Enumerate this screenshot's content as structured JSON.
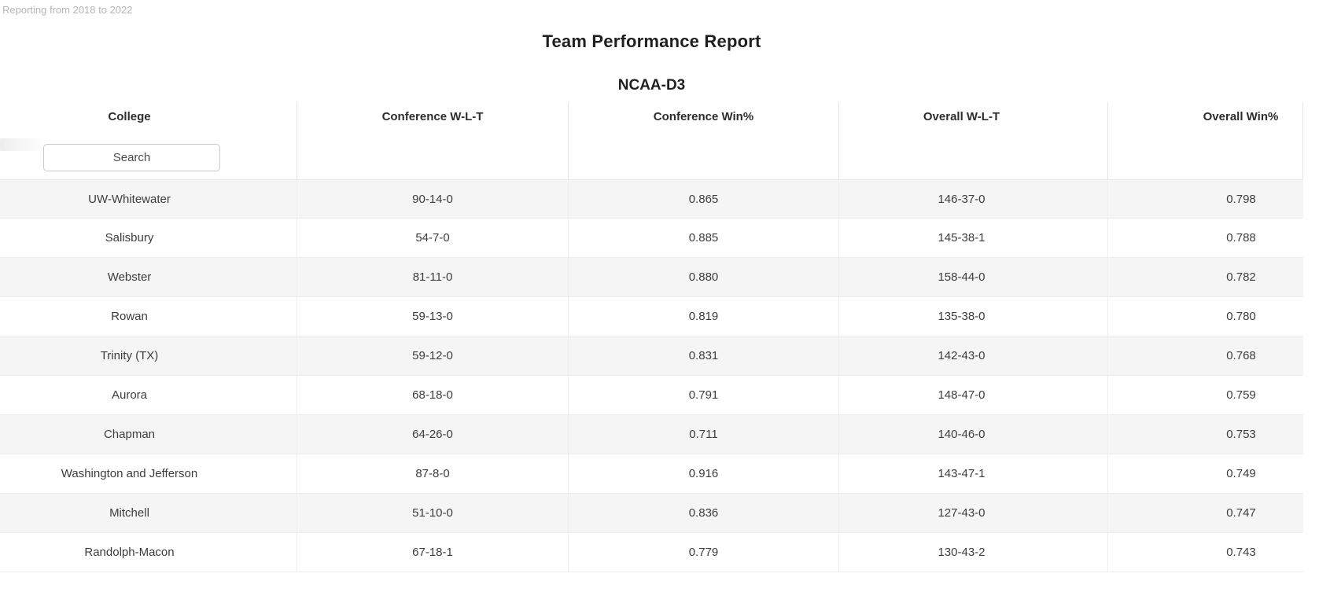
{
  "note": "Reporting from 2018 to 2022",
  "report": {
    "title": "Team Performance Report",
    "subtitle": "NCAA-D3"
  },
  "table": {
    "columns": [
      "College",
      "Conference W-L-T",
      "Conference Win%",
      "Overall W-L-T",
      "Overall Win%"
    ],
    "search_placeholder": "Search",
    "rows": [
      [
        "UW-Whitewater",
        "90-14-0",
        "0.865",
        "146-37-0",
        "0.798"
      ],
      [
        "Salisbury",
        "54-7-0",
        "0.885",
        "145-38-1",
        "0.788"
      ],
      [
        "Webster",
        "81-11-0",
        "0.880",
        "158-44-0",
        "0.782"
      ],
      [
        "Rowan",
        "59-13-0",
        "0.819",
        "135-38-0",
        "0.780"
      ],
      [
        "Trinity (TX)",
        "59-12-0",
        "0.831",
        "142-43-0",
        "0.768"
      ],
      [
        "Aurora",
        "68-18-0",
        "0.791",
        "148-47-0",
        "0.759"
      ],
      [
        "Chapman",
        "64-26-0",
        "0.711",
        "140-46-0",
        "0.753"
      ],
      [
        "Washington and Jefferson",
        "87-8-0",
        "0.916",
        "143-47-1",
        "0.749"
      ],
      [
        "Mitchell",
        "51-10-0",
        "0.836",
        "127-43-0",
        "0.747"
      ],
      [
        "Randolph-Macon",
        "67-18-1",
        "0.779",
        "130-43-2",
        "0.743"
      ]
    ]
  },
  "colors": {
    "stripe": "#f5f5f6",
    "header_separator": "#e4e4e4",
    "row_separator": "#ececec",
    "header_text": "#2d2d2d",
    "cell_text": "#3c3c3c",
    "note_text": "#b5b5b5",
    "search_border": "#c9c9c9"
  }
}
